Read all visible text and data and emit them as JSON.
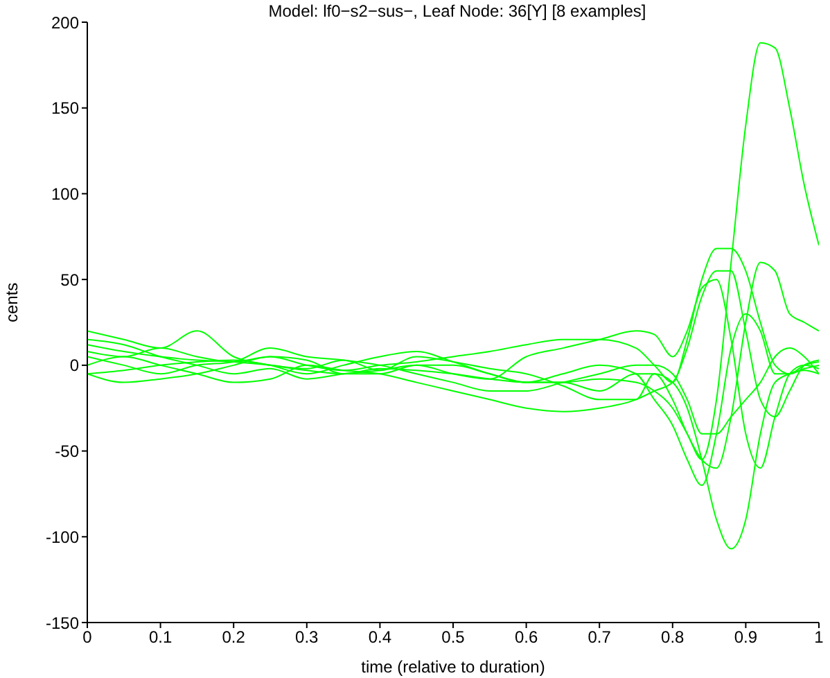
{
  "chart_data": {
    "type": "line",
    "title": "Model: lf0−s2−sus−, Leaf Node: 36[Y] [8 examples]",
    "xlabel": "time (relative to duration)",
    "ylabel": "cents",
    "x": [
      0,
      0.05,
      0.1,
      0.15,
      0.2,
      0.25,
      0.3,
      0.35,
      0.4,
      0.45,
      0.5,
      0.55,
      0.6,
      0.65,
      0.7,
      0.75,
      0.775,
      0.8,
      0.82,
      0.84,
      0.86,
      0.88,
      0.9,
      0.92,
      0.94,
      0.96,
      0.98,
      1
    ],
    "series": [
      {
        "color": "#00ff00",
        "values": [
          -5,
          -3,
          0,
          2,
          3,
          0,
          -3,
          -5,
          -2,
          -3,
          -5,
          -8,
          -10,
          -10,
          -8,
          -10,
          -15,
          -25,
          -40,
          -55,
          -20,
          60,
          140,
          188,
          185,
          150,
          105,
          70
        ]
      },
      {
        "color": "#00ff00",
        "values": [
          12,
          8,
          5,
          3,
          2,
          0,
          -2,
          3,
          -3,
          5,
          2,
          -2,
          -5,
          -12,
          -20,
          -20,
          -5,
          -10,
          -25,
          -55,
          -90,
          -107,
          -90,
          -40,
          -10,
          -5,
          -3,
          -5
        ]
      },
      {
        "color": "#00ff00",
        "values": [
          8,
          5,
          10,
          5,
          2,
          5,
          0,
          -3,
          0,
          2,
          5,
          8,
          12,
          15,
          15,
          10,
          0,
          -10,
          15,
          50,
          68,
          68,
          55,
          25,
          0,
          -5,
          0,
          2
        ]
      },
      {
        "color": "#00ff00",
        "values": [
          20,
          15,
          10,
          20,
          5,
          0,
          -5,
          0,
          5,
          8,
          2,
          -5,
          -10,
          -10,
          -15,
          -5,
          -5,
          -20,
          -40,
          -55,
          -60,
          -30,
          25,
          60,
          55,
          30,
          25,
          20
        ]
      },
      {
        "color": "#00ff00",
        "values": [
          15,
          12,
          5,
          0,
          -5,
          -2,
          -8,
          -5,
          -3,
          0,
          -5,
          -8,
          5,
          10,
          15,
          20,
          18,
          5,
          20,
          45,
          50,
          15,
          -40,
          -60,
          -30,
          -5,
          0,
          -2
        ]
      },
      {
        "color": "#00ff00",
        "values": [
          -5,
          -10,
          -8,
          -5,
          0,
          5,
          3,
          -5,
          -5,
          0,
          0,
          -5,
          -10,
          -5,
          0,
          -5,
          -20,
          -35,
          -55,
          -70,
          -40,
          10,
          30,
          20,
          -5,
          -5,
          -2,
          0
        ]
      },
      {
        "color": "#00ff00",
        "values": [
          0,
          5,
          0,
          -5,
          -10,
          -8,
          0,
          -3,
          -5,
          -10,
          -15,
          -20,
          -25,
          -27,
          -25,
          -20,
          -15,
          -10,
          10,
          40,
          55,
          55,
          20,
          -20,
          -30,
          -15,
          0,
          3
        ]
      },
      {
        "color": "#00ff00",
        "values": [
          5,
          0,
          -5,
          0,
          2,
          10,
          5,
          3,
          0,
          -5,
          -10,
          -15,
          -15,
          -10,
          -5,
          0,
          0,
          -5,
          -20,
          -40,
          -40,
          -30,
          -20,
          -10,
          5,
          10,
          5,
          -5
        ]
      }
    ],
    "xlim": [
      0,
      1
    ],
    "xticks": [
      0,
      0.1,
      0.2,
      0.3,
      0.4,
      0.5,
      0.6,
      0.7,
      0.8,
      0.9,
      1
    ],
    "ylim": [
      -150,
      200
    ],
    "yticks": [
      -150,
      -100,
      -50,
      0,
      50,
      100,
      150,
      200
    ],
    "grid": false,
    "legend": false,
    "marker": "none",
    "line_style": "solid"
  }
}
